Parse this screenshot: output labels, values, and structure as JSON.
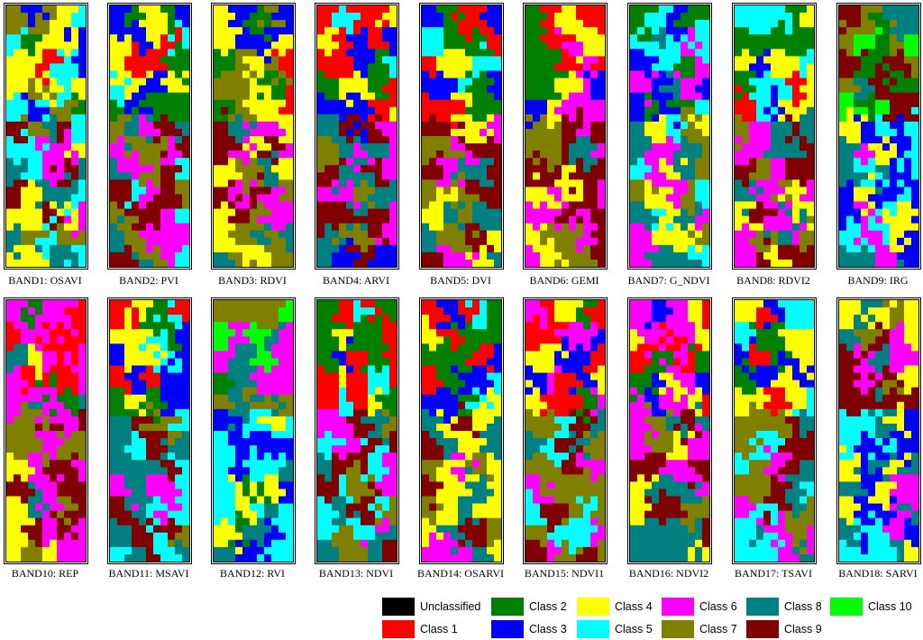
{
  "panels": [
    {
      "label": "BAND1: OSAVI"
    },
    {
      "label": "BAND2: PVI"
    },
    {
      "label": "BAND3: RDVI"
    },
    {
      "label": "BAND4: ARVI"
    },
    {
      "label": "BAND5: DVI"
    },
    {
      "label": "BAND6: GEMI"
    },
    {
      "label": "BAND7: G_NDVI"
    },
    {
      "label": "BAND8: RDVI2"
    },
    {
      "label": "BAND9: IRG"
    },
    {
      "label": "BAND10: REP"
    },
    {
      "label": "BAND11: MSAVI"
    },
    {
      "label": "BAND12: RVI"
    },
    {
      "label": "BAND13: NDVI"
    },
    {
      "label": "BAND14: OSARVI"
    },
    {
      "label": "BAND15: NDVI1"
    },
    {
      "label": "BAND16: NDVI2"
    },
    {
      "label": "BAND17: TSAVI"
    },
    {
      "label": "BAND18: SARVI"
    }
  ],
  "legend": [
    {
      "label": "Unclassified",
      "color": "#000000"
    },
    {
      "label": "Class 1",
      "color": "#ff0000"
    },
    {
      "label": "Class 2",
      "color": "#008000"
    },
    {
      "label": "Class 3",
      "color": "#0000ff"
    },
    {
      "label": "Class 4",
      "color": "#ffff00"
    },
    {
      "label": "Class 5",
      "color": "#00ffff"
    },
    {
      "label": "Class 6",
      "color": "#ff00ff"
    },
    {
      "label": "Class 7",
      "color": "#808000"
    },
    {
      "label": "Class 8",
      "color": "#008080"
    },
    {
      "label": "Class 9",
      "color": "#800000"
    },
    {
      "label": "Class 10",
      "color": "#00ff00"
    }
  ]
}
